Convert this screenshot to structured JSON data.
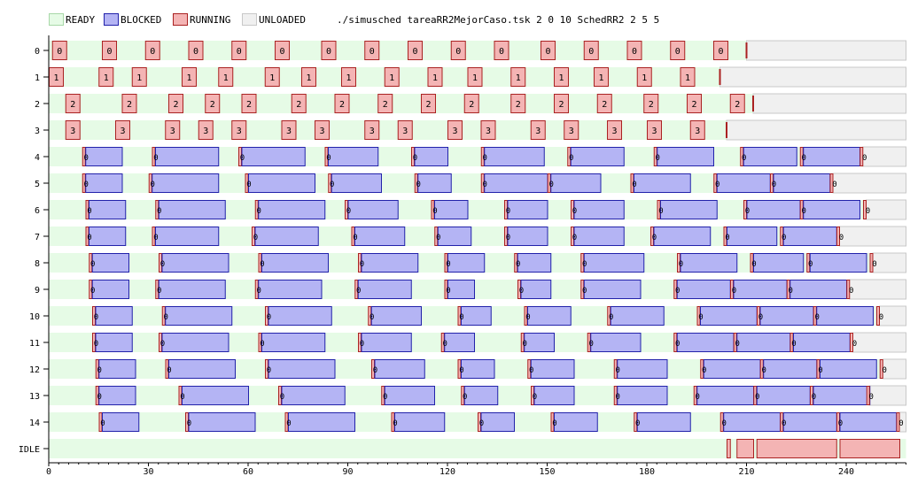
{
  "legend": [
    {
      "name": "READY",
      "fill": "#e6fbe6",
      "stroke": "#a8d8a8"
    },
    {
      "name": "BLOCKED",
      "fill": "#b4b4f4",
      "stroke": "#2222aa"
    },
    {
      "name": "RUNNING",
      "fill": "#f4b4b4",
      "stroke": "#aa2222"
    },
    {
      "name": "UNLOADED",
      "fill": "#f0f0f0",
      "stroke": "#c8c8c8"
    }
  ],
  "command": "./simusched tareaRR2MejorCaso.tsk 2 0 10 SchedRR2 2 5 5",
  "chart_data": {
    "type": "gantt",
    "rows": [
      "0",
      "1",
      "2",
      "3",
      "4",
      "5",
      "6",
      "7",
      "8",
      "9",
      "10",
      "11",
      "12",
      "13",
      "14",
      "IDLE"
    ],
    "x_ticks": [
      0,
      30,
      60,
      90,
      120,
      150,
      180,
      210,
      240
    ],
    "xlim": [
      0,
      258
    ],
    "task_lifetimes": [
      {
        "task": "0",
        "start": 0,
        "end": 210
      },
      {
        "task": "1",
        "start": 0,
        "end": 202
      },
      {
        "task": "2",
        "start": 0,
        "end": 212
      },
      {
        "task": "3",
        "start": 0,
        "end": 204
      },
      {
        "task": "4",
        "start": 0,
        "end": 245
      },
      {
        "task": "5",
        "start": 0,
        "end": 236
      },
      {
        "task": "6",
        "start": 0,
        "end": 246
      },
      {
        "task": "7",
        "start": 0,
        "end": 238
      },
      {
        "task": "8",
        "start": 0,
        "end": 248
      },
      {
        "task": "9",
        "start": 0,
        "end": 241
      },
      {
        "task": "10",
        "start": 0,
        "end": 250
      },
      {
        "task": "11",
        "start": 0,
        "end": 242
      },
      {
        "task": "12",
        "start": 0,
        "end": 251
      },
      {
        "task": "13",
        "start": 0,
        "end": 247
      },
      {
        "task": "14",
        "start": 0,
        "end": 256
      }
    ],
    "running_bars": [
      {
        "task": "0",
        "label": "0",
        "start": [
          1,
          16,
          29,
          42,
          55,
          68,
          82,
          95,
          108,
          121,
          134,
          148,
          161,
          174,
          187,
          200
        ]
      },
      {
        "task": "1",
        "label": "1",
        "start": [
          0,
          15,
          25,
          40,
          51,
          65,
          76,
          88,
          101,
          114,
          126,
          139,
          152,
          164,
          177,
          190
        ]
      },
      {
        "task": "2",
        "label": "2",
        "start": [
          5,
          22,
          36,
          47,
          58,
          73,
          86,
          99,
          112,
          125,
          139,
          152,
          165,
          179,
          192,
          205
        ]
      },
      {
        "task": "3",
        "label": "3",
        "start": [
          5,
          20,
          35,
          45,
          55,
          70,
          80,
          95,
          105,
          120,
          130,
          145,
          155,
          168,
          180,
          193
        ]
      }
    ],
    "blocked_bars": [
      {
        "task": "4",
        "label": "0",
        "intervals": [
          [
            11,
            22
          ],
          [
            32,
            51
          ],
          [
            58,
            77
          ],
          [
            84,
            99
          ],
          [
            110,
            120
          ],
          [
            131,
            149
          ],
          [
            157,
            173
          ],
          [
            183,
            200
          ],
          [
            209,
            225
          ],
          [
            227,
            244
          ]
        ]
      },
      {
        "task": "5",
        "label": "0",
        "intervals": [
          [
            11,
            22
          ],
          [
            31,
            51
          ],
          [
            60,
            80
          ],
          [
            85,
            100
          ],
          [
            111,
            121
          ],
          [
            131,
            150
          ],
          [
            151,
            166
          ],
          [
            176,
            193
          ],
          [
            201,
            217
          ],
          [
            218,
            235
          ]
        ]
      },
      {
        "task": "6",
        "label": "0",
        "intervals": [
          [
            12,
            23
          ],
          [
            33,
            53
          ],
          [
            63,
            83
          ],
          [
            90,
            105
          ],
          [
            116,
            126
          ],
          [
            138,
            150
          ],
          [
            158,
            173
          ],
          [
            184,
            201
          ],
          [
            210,
            226
          ],
          [
            227,
            244
          ]
        ]
      },
      {
        "task": "7",
        "label": "0",
        "intervals": [
          [
            12,
            23
          ],
          [
            32,
            51
          ],
          [
            62,
            81
          ],
          [
            92,
            107
          ],
          [
            117,
            127
          ],
          [
            138,
            150
          ],
          [
            158,
            173
          ],
          [
            182,
            199
          ],
          [
            204,
            219
          ],
          [
            221,
            237
          ]
        ]
      },
      {
        "task": "8",
        "label": "0",
        "intervals": [
          [
            13,
            24
          ],
          [
            34,
            54
          ],
          [
            64,
            84
          ],
          [
            94,
            111
          ],
          [
            120,
            131
          ],
          [
            141,
            151
          ],
          [
            161,
            179
          ],
          [
            190,
            207
          ],
          [
            212,
            227
          ],
          [
            229,
            246
          ]
        ]
      },
      {
        "task": "9",
        "label": "0",
        "intervals": [
          [
            13,
            24
          ],
          [
            33,
            53
          ],
          [
            63,
            82
          ],
          [
            93,
            109
          ],
          [
            120,
            128
          ],
          [
            142,
            151
          ],
          [
            161,
            178
          ],
          [
            189,
            205
          ],
          [
            206,
            222
          ],
          [
            223,
            240
          ]
        ]
      },
      {
        "task": "10",
        "label": "0",
        "intervals": [
          [
            14,
            25
          ],
          [
            35,
            55
          ],
          [
            66,
            85
          ],
          [
            97,
            112
          ],
          [
            124,
            133
          ],
          [
            144,
            157
          ],
          [
            169,
            185
          ],
          [
            196,
            213
          ],
          [
            214,
            230
          ],
          [
            231,
            248
          ]
        ]
      },
      {
        "task": "11",
        "label": "0",
        "intervals": [
          [
            14,
            25
          ],
          [
            34,
            54
          ],
          [
            64,
            83
          ],
          [
            94,
            109
          ],
          [
            119,
            128
          ],
          [
            143,
            152
          ],
          [
            163,
            178
          ],
          [
            189,
            206
          ],
          [
            207,
            223
          ],
          [
            224,
            241
          ]
        ]
      },
      {
        "task": "12",
        "label": "0",
        "intervals": [
          [
            15,
            26
          ],
          [
            36,
            56
          ],
          [
            66,
            86
          ],
          [
            98,
            113
          ],
          [
            124,
            134
          ],
          [
            145,
            158
          ],
          [
            171,
            186
          ],
          [
            197,
            214
          ],
          [
            215,
            231
          ],
          [
            232,
            249
          ]
        ]
      },
      {
        "task": "13",
        "label": "0",
        "intervals": [
          [
            15,
            26
          ],
          [
            40,
            60
          ],
          [
            70,
            89
          ],
          [
            101,
            116
          ],
          [
            125,
            135
          ],
          [
            146,
            158
          ],
          [
            171,
            186
          ],
          [
            195,
            212
          ],
          [
            213,
            229
          ],
          [
            230,
            247
          ]
        ]
      },
      {
        "task": "14",
        "label": "0",
        "intervals": [
          [
            16,
            27
          ],
          [
            42,
            62
          ],
          [
            72,
            92
          ],
          [
            104,
            119
          ],
          [
            130,
            140
          ],
          [
            152,
            165
          ],
          [
            177,
            193
          ],
          [
            203,
            220
          ],
          [
            221,
            237
          ],
          [
            238,
            255
          ]
        ]
      }
    ],
    "idle_bars": [
      [
        204,
        205
      ],
      [
        207,
        212
      ],
      [
        213,
        237
      ],
      [
        238,
        256
      ]
    ]
  }
}
